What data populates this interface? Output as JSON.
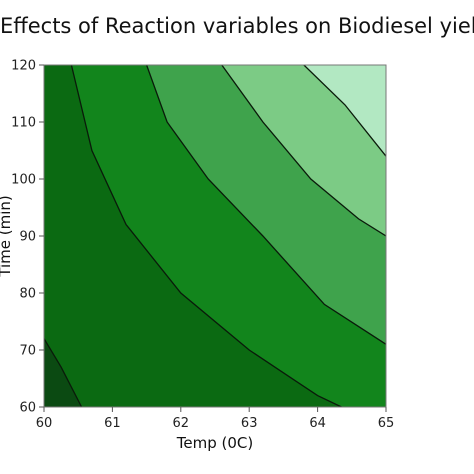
{
  "chart_data": {
    "type": "contour",
    "title": "Effects of Reaction variables on Biodiesel yield",
    "xlabel": "Temp (0C)",
    "ylabel": "Time (min)",
    "xlim": [
      60,
      65
    ],
    "ylim": [
      60,
      120
    ],
    "x_ticks": [
      "60",
      "61",
      "62",
      "63",
      "64",
      "65"
    ],
    "y_ticks": [
      "60",
      "70",
      "80",
      "90",
      "100",
      "110",
      "120"
    ],
    "grid": false,
    "legend": "none",
    "contour_lines": [
      {
        "points": [
          [
            60.0,
            72.0
          ],
          [
            60.25,
            67.0
          ],
          [
            60.55,
            60.0
          ]
        ]
      },
      {
        "points": [
          [
            60.4,
            120.0
          ],
          [
            60.7,
            105.0
          ],
          [
            61.2,
            92.0
          ],
          [
            62.0,
            80.0
          ],
          [
            63.0,
            70.0
          ],
          [
            64.0,
            62.0
          ],
          [
            64.35,
            60.0
          ]
        ]
      },
      {
        "points": [
          [
            61.5,
            120.0
          ],
          [
            61.8,
            110.0
          ],
          [
            62.4,
            100.0
          ],
          [
            63.2,
            90.0
          ],
          [
            64.1,
            78.0
          ],
          [
            65.0,
            71.0
          ]
        ]
      },
      {
        "points": [
          [
            62.6,
            120.0
          ],
          [
            63.2,
            110.0
          ],
          [
            63.9,
            100.0
          ],
          [
            64.6,
            93.0
          ],
          [
            65.0,
            90.0
          ]
        ]
      },
      {
        "points": [
          [
            63.8,
            120.0
          ],
          [
            64.4,
            113.0
          ],
          [
            65.0,
            104.0
          ]
        ]
      }
    ],
    "band_colors": [
      "#0b4a12",
      "#0b6a12",
      "#12851c",
      "#3fa34c",
      "#7ccb85",
      "#b2e8c2"
    ]
  }
}
